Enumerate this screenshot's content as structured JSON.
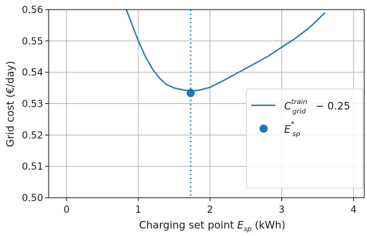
{
  "chart_data": {
    "type": "line",
    "title": "",
    "xlabel": {
      "prefix": "Charging set point ",
      "symbol": "E",
      "sub": "sp",
      "suffix": " (kWh)"
    },
    "ylabel": "Grid cost (€/day)",
    "xlim": [
      -0.25,
      4.15
    ],
    "ylim": [
      0.5,
      0.56
    ],
    "xticks": [
      0,
      1,
      2,
      3,
      4
    ],
    "xtick_labels": [
      "0",
      "1",
      "2",
      "3",
      "4"
    ],
    "yticks": [
      0.5,
      0.51,
      0.52,
      0.53,
      0.54,
      0.55,
      0.56
    ],
    "ytick_labels": [
      "0.50",
      "0.51",
      "0.52",
      "0.53",
      "0.54",
      "0.55",
      "0.56"
    ],
    "grid": true,
    "series": [
      {
        "name": {
          "symbol": "C",
          "sup": "train",
          "sub": "grid",
          "suffix": " − 0.25"
        },
        "color": "#1f77b4",
        "x": [
          0.7,
          0.8,
          0.9,
          1.0,
          1.1,
          1.2,
          1.3,
          1.4,
          1.5,
          1.6,
          1.73,
          1.85,
          2.0,
          2.2,
          2.4,
          2.6,
          2.8,
          3.0,
          3.2,
          3.4,
          3.6
        ],
        "y": [
          0.574,
          0.562,
          0.556,
          0.55,
          0.545,
          0.541,
          0.538,
          0.536,
          0.535,
          0.5345,
          0.534,
          0.5343,
          0.5352,
          0.5375,
          0.54,
          0.5425,
          0.545,
          0.548,
          0.551,
          0.5545,
          0.559
        ]
      }
    ],
    "optimum": {
      "name": {
        "symbol": "E",
        "sup": "*",
        "sub": "sp"
      },
      "x": 1.73,
      "y": 0.5334,
      "color": "#1f77b4",
      "vline": "dotted"
    },
    "legend_position": "center-right"
  }
}
